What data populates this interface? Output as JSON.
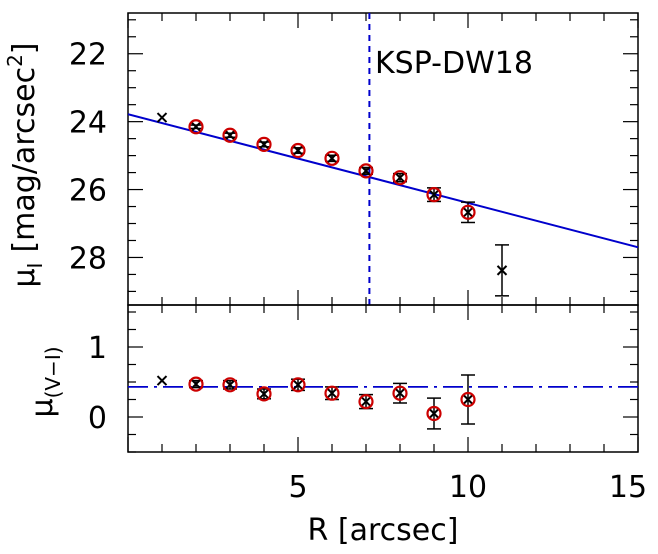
{
  "chart_data": [
    {
      "type": "scatter",
      "panel": "top",
      "annotation": "KSP-DW18",
      "ylabel": {
        "symbol": "μ",
        "subscript": "I",
        "unit": "[mag/arcsec",
        "unit_sup": "2",
        "unit_close": "]"
      },
      "xlim": [
        0,
        15
      ],
      "ylim": [
        29.4,
        20.8
      ],
      "y_inverted": true,
      "yticks": [
        22,
        24,
        26,
        28
      ],
      "series": [
        {
          "marker": "x",
          "color": "#000000",
          "points": [
            {
              "x": 1,
              "y": 23.88,
              "err": 0
            },
            {
              "x": 2,
              "y": 24.15,
              "err": 0.05
            },
            {
              "x": 3,
              "y": 24.4,
              "err": 0.06
            },
            {
              "x": 4,
              "y": 24.67,
              "err": 0.07
            },
            {
              "x": 5,
              "y": 24.85,
              "err": 0.08
            },
            {
              "x": 6,
              "y": 25.08,
              "err": 0.09
            },
            {
              "x": 7,
              "y": 25.45,
              "err": 0.1
            },
            {
              "x": 8,
              "y": 25.65,
              "err": 0.12
            },
            {
              "x": 9,
              "y": 26.15,
              "err": 0.2
            },
            {
              "x": 10,
              "y": 26.67,
              "err": 0.3
            },
            {
              "x": 11,
              "y": 28.38,
              "err": 0.75
            }
          ]
        },
        {
          "marker": "circle",
          "color": "#cc0000",
          "x": [
            2,
            3,
            4,
            5,
            6,
            7,
            8,
            9,
            10
          ],
          "y": [
            24.15,
            24.4,
            24.67,
            24.85,
            25.08,
            25.45,
            25.65,
            26.15,
            26.67
          ]
        }
      ],
      "fit_line": {
        "color": "#0000cc",
        "x": [
          0,
          15
        ],
        "y": [
          23.78,
          27.7
        ]
      },
      "vline": {
        "x": 7.1,
        "color": "#0000cc",
        "style": "dashed"
      }
    },
    {
      "type": "scatter",
      "panel": "bottom",
      "xlabel": "R [arcsec]",
      "ylabel": {
        "symbol": "μ",
        "subscript": "(V−I)"
      },
      "xlim": [
        0,
        15
      ],
      "ylim": [
        -0.5,
        1.6
      ],
      "xticks": [
        5,
        10,
        15
      ],
      "yticks": [
        0,
        1
      ],
      "series": [
        {
          "marker": "x",
          "color": "#000000",
          "points": [
            {
              "x": 1,
              "y": 0.52,
              "err": 0
            },
            {
              "x": 2,
              "y": 0.47,
              "err": 0.05
            },
            {
              "x": 3,
              "y": 0.46,
              "err": 0.06
            },
            {
              "x": 4,
              "y": 0.33,
              "err": 0.07
            },
            {
              "x": 5,
              "y": 0.46,
              "err": 0.08
            },
            {
              "x": 6,
              "y": 0.34,
              "err": 0.09
            },
            {
              "x": 7,
              "y": 0.22,
              "err": 0.1
            },
            {
              "x": 8,
              "y": 0.34,
              "err": 0.14
            },
            {
              "x": 9,
              "y": 0.05,
              "err": 0.22
            },
            {
              "x": 10,
              "y": 0.25,
              "err": 0.35
            }
          ]
        },
        {
          "marker": "circle",
          "color": "#cc0000",
          "x": [
            2,
            3,
            4,
            5,
            6,
            7,
            8,
            9,
            10
          ],
          "y": [
            0.47,
            0.46,
            0.33,
            0.46,
            0.34,
            0.22,
            0.34,
            0.05,
            0.25
          ]
        }
      ],
      "hline": {
        "y": 0.43,
        "color": "#0000cc",
        "style": "dash-dot"
      }
    }
  ]
}
